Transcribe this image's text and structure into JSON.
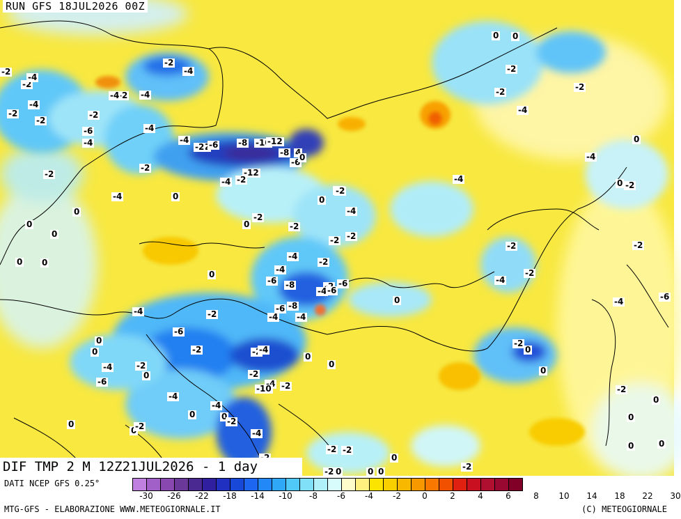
{
  "header": {
    "run_title": "RUN GFS 18JUL2026 00Z"
  },
  "footer": {
    "field_title": "DIF TMP 2 M 12Z21JUL2026 - 1 day"
  },
  "legend": {
    "source": "DATI NCEP GFS 0.25°",
    "credit_left": "MTG-GFS - ELABORAZIONE WWW.METEOGIORNALE.IT",
    "credit_right": "(C) METEOGIORNALE",
    "colors": [
      "#c080e0",
      "#a060c8",
      "#8848b0",
      "#6a3898",
      "#4a2a90",
      "#3020a0",
      "#2030c0",
      "#1848d8",
      "#1c66f0",
      "#2288f8",
      "#30a8f8",
      "#50c8f8",
      "#80e0f8",
      "#b0f0f8",
      "#d8fcfc",
      "#fffccc",
      "#fff080",
      "#fbe400",
      "#f8d000",
      "#f8b800",
      "#f89800",
      "#f87800",
      "#f05000",
      "#e02010",
      "#c81020",
      "#b01030",
      "#980830",
      "#800028"
    ],
    "ticks": [
      "-30",
      "-26",
      "-22",
      "-18",
      "-14",
      "-10",
      "-8",
      "-6",
      "-4",
      "-2",
      "0",
      "2",
      "4",
      "6",
      "8",
      "10",
      "14",
      "18",
      "22",
      "30"
    ]
  },
  "map": {
    "labels": [
      {
        "t": "-2"
      },
      {
        "t": "-2"
      },
      {
        "t": "-4"
      },
      {
        "t": "-2"
      },
      {
        "t": "-4"
      },
      {
        "t": "-2"
      },
      {
        "t": "-6"
      },
      {
        "t": "-4"
      },
      {
        "t": "-2"
      },
      {
        "t": "-4"
      },
      {
        "t": "-2"
      },
      {
        "t": "-4"
      },
      {
        "t": "-4"
      },
      {
        "t": "-2"
      },
      {
        "t": "-2"
      },
      {
        "t": "-6"
      },
      {
        "t": "-8"
      },
      {
        "t": "-10"
      },
      {
        "t": "-12"
      },
      {
        "t": "-8"
      },
      {
        "t": "4"
      },
      {
        "t": "-6"
      },
      {
        "t": "0"
      },
      {
        "t": "-4"
      },
      {
        "t": "-2"
      },
      {
        "t": "-4"
      },
      {
        "t": "-12"
      },
      {
        "t": "-4"
      },
      {
        "t": "-2"
      },
      {
        "t": "-2"
      },
      {
        "t": "-2"
      },
      {
        "t": "0"
      },
      {
        "t": "-4"
      },
      {
        "t": "0"
      },
      {
        "t": "0"
      },
      {
        "t": "0"
      },
      {
        "t": "0"
      },
      {
        "t": "0"
      },
      {
        "t": "0"
      },
      {
        "t": "-2"
      },
      {
        "t": "0"
      },
      {
        "t": "-2"
      },
      {
        "t": "-4"
      },
      {
        "t": "-2"
      },
      {
        "t": "0"
      },
      {
        "t": "-2"
      },
      {
        "t": "-2"
      },
      {
        "t": "-4"
      },
      {
        "t": "-2"
      },
      {
        "t": "-4"
      },
      {
        "t": "-6"
      },
      {
        "t": "-8"
      },
      {
        "t": "-6"
      },
      {
        "t": "-8"
      },
      {
        "t": "-4"
      },
      {
        "t": "-4"
      },
      {
        "t": "-2"
      },
      {
        "t": "-4"
      },
      {
        "t": "-6"
      },
      {
        "t": "-6"
      },
      {
        "t": "-4"
      },
      {
        "t": "-2"
      },
      {
        "t": "-6"
      },
      {
        "t": "-2"
      },
      {
        "t": "-4"
      },
      {
        "t": "-4"
      },
      {
        "t": "-4"
      },
      {
        "t": "-2"
      },
      {
        "t": "-6"
      },
      {
        "t": "-2"
      },
      {
        "t": "-4"
      },
      {
        "t": "-2"
      },
      {
        "t": "-4"
      },
      {
        "t": "-10"
      },
      {
        "t": "-2"
      },
      {
        "t": "0"
      },
      {
        "t": "0"
      },
      {
        "t": "0"
      },
      {
        "t": "0"
      },
      {
        "t": "0"
      },
      {
        "t": "-2"
      },
      {
        "t": "-4"
      },
      {
        "t": "-2"
      },
      {
        "t": "-2"
      },
      {
        "t": "-2"
      },
      {
        "t": "-2"
      },
      {
        "t": "0"
      },
      {
        "t": "0"
      },
      {
        "t": "0"
      },
      {
        "t": "0"
      },
      {
        "t": "-2"
      },
      {
        "t": "-4"
      },
      {
        "t": "-2"
      },
      {
        "t": "-2"
      },
      {
        "t": "-4"
      },
      {
        "t": "-2"
      },
      {
        "t": "-2"
      },
      {
        "t": "0"
      },
      {
        "t": "0"
      },
      {
        "t": "0"
      },
      {
        "t": "0"
      },
      {
        "t": "0"
      },
      {
        "t": "0"
      },
      {
        "t": "0"
      },
      {
        "t": "-2"
      },
      {
        "t": "-4"
      },
      {
        "t": "-2"
      },
      {
        "t": "-4"
      },
      {
        "t": "-6"
      },
      {
        "t": "-2"
      },
      {
        "t": "0"
      },
      {
        "t": "0"
      },
      {
        "t": "0"
      },
      {
        "t": "0"
      },
      {
        "t": "0"
      },
      {
        "t": "0"
      },
      {
        "t": "-2"
      },
      {
        "t": "-2"
      },
      {
        "t": "-4"
      },
      {
        "t": "-2"
      },
      {
        "t": "-2"
      },
      {
        "t": "0"
      },
      {
        "t": "0"
      }
    ]
  }
}
